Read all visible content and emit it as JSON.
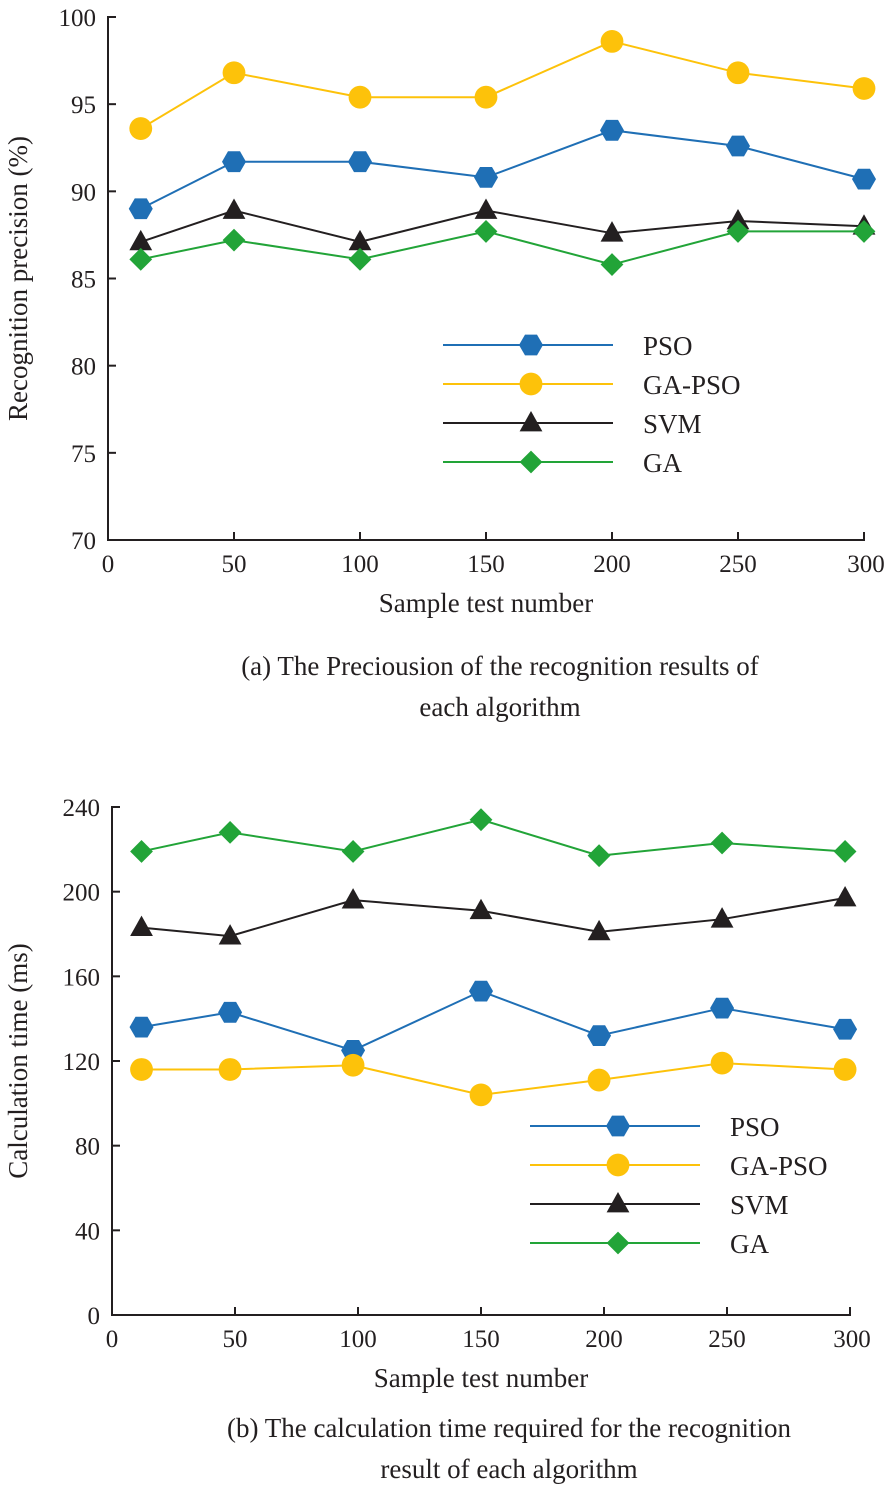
{
  "chart_data": [
    {
      "type": "line",
      "panel": "a",
      "xlabel": "Sample test number",
      "ylabel": "Recognition precision (%)",
      "xlim": [
        0,
        300
      ],
      "ylim": [
        70,
        100
      ],
      "xticks": [
        0,
        50,
        100,
        150,
        200,
        250,
        300
      ],
      "xtick_labels": [
        "0",
        "50",
        "100",
        "150",
        "200",
        "250",
        "300"
      ],
      "yticks": [
        70,
        75,
        80,
        85,
        90,
        95,
        100
      ],
      "ytick_labels": [
        "70",
        "75",
        "80",
        "85",
        "90",
        "95",
        "100"
      ],
      "caption": [
        "(a)  The Preciousion  of the recognition results of",
        "each algorithm"
      ],
      "legend_position": "center-right",
      "grid": false,
      "series": [
        {
          "name": "PSO",
          "color": "#1f6fb5",
          "marker": "hexagon",
          "x": [
            13,
            50,
            100,
            150,
            200,
            250,
            300
          ],
          "y": [
            89.0,
            91.7,
            91.7,
            90.8,
            93.5,
            92.6,
            90.7
          ]
        },
        {
          "name": "GA-PSO",
          "color": "#fdc20a",
          "marker": "circle",
          "x": [
            13,
            50,
            100,
            150,
            200,
            250,
            300
          ],
          "y": [
            93.6,
            96.8,
            95.4,
            95.4,
            98.6,
            96.8,
            95.9
          ]
        },
        {
          "name": "SVM",
          "color": "#231f20",
          "marker": "triangle",
          "x": [
            13,
            50,
            100,
            150,
            200,
            250,
            300
          ],
          "y": [
            87.1,
            88.9,
            87.1,
            88.9,
            87.6,
            88.3,
            88.0
          ]
        },
        {
          "name": "GA",
          "color": "#22a438",
          "marker": "diamond",
          "x": [
            13,
            50,
            100,
            150,
            200,
            250,
            300
          ],
          "y": [
            86.1,
            87.2,
            86.1,
            87.7,
            85.8,
            87.7,
            87.7
          ]
        }
      ]
    },
    {
      "type": "line",
      "panel": "b",
      "xlabel": "Sample test number",
      "ylabel": "Calculation time (ms)",
      "xlim": [
        0,
        300
      ],
      "ylim": [
        0,
        240
      ],
      "xticks": [
        0,
        50,
        100,
        150,
        200,
        250,
        300
      ],
      "xtick_labels": [
        "0",
        "50",
        "100",
        "150",
        "200",
        "250",
        "300"
      ],
      "yticks": [
        0,
        40,
        80,
        120,
        160,
        200,
        240
      ],
      "ytick_labels": [
        "0",
        "40",
        "80",
        "120",
        "160",
        "200",
        "240"
      ],
      "caption": [
        "(b)  The calculation time required for the recognition",
        "result of each algorithm"
      ],
      "legend_position": "bottom-right",
      "grid": false,
      "series": [
        {
          "name": "PSO",
          "color": "#1f6fb5",
          "marker": "hexagon",
          "x": [
            12,
            48,
            98,
            150,
            198,
            248,
            298
          ],
          "y": [
            136,
            143,
            125,
            153,
            132,
            145,
            135
          ]
        },
        {
          "name": "GA-PSO",
          "color": "#fdc20a",
          "marker": "circle",
          "x": [
            12,
            48,
            98,
            150,
            198,
            248,
            298
          ],
          "y": [
            116,
            116,
            118,
            104,
            111,
            119,
            116
          ]
        },
        {
          "name": "SVM",
          "color": "#231f20",
          "marker": "triangle",
          "x": [
            12,
            48,
            98,
            150,
            198,
            248,
            298
          ],
          "y": [
            183,
            179,
            196,
            191,
            181,
            187,
            197
          ]
        },
        {
          "name": "GA",
          "color": "#22a438",
          "marker": "diamond",
          "x": [
            12,
            48,
            98,
            150,
            198,
            248,
            298
          ],
          "y": [
            219,
            228,
            219,
            234,
            217,
            223,
            219
          ]
        }
      ]
    }
  ]
}
